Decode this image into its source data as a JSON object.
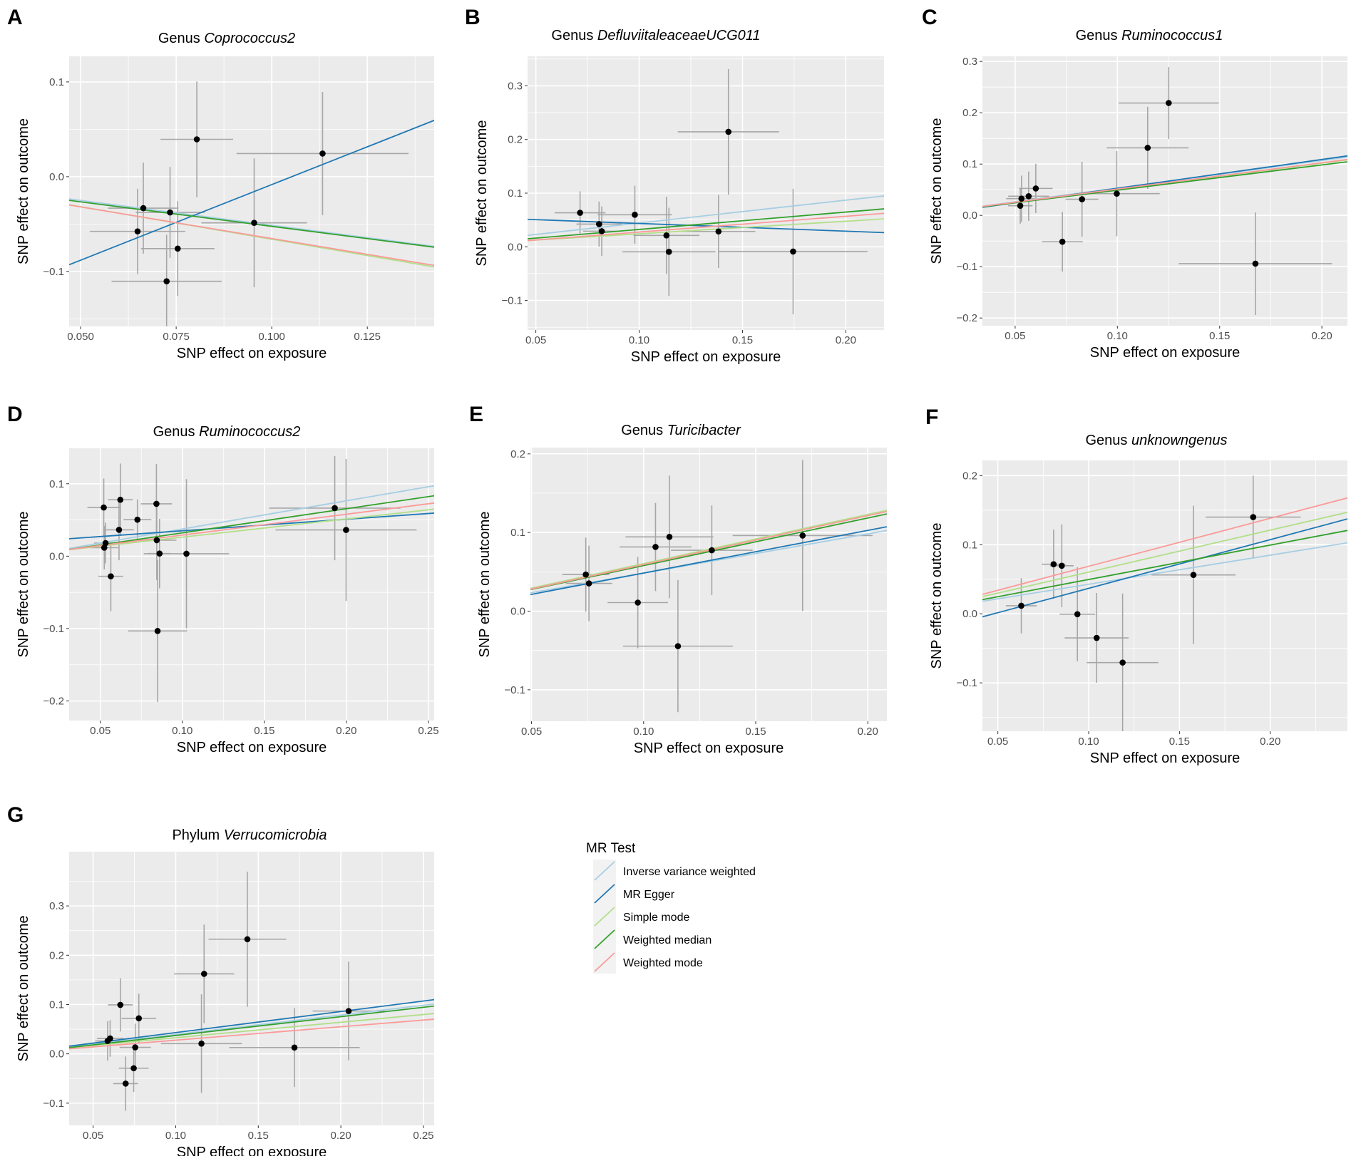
{
  "legend": {
    "title": "MR Test",
    "items": [
      {
        "label": "Inverse variance weighted",
        "color": "#a6cee3"
      },
      {
        "label": "MR Egger",
        "color": "#1f78b4"
      },
      {
        "label": "Simple mode",
        "color": "#b2df8a"
      },
      {
        "label": "Weighted median",
        "color": "#33a02c"
      },
      {
        "label": "Weighted mode",
        "color": "#fb9a99"
      }
    ]
  },
  "chart_data": [
    {
      "letter": "A",
      "type": "scatter",
      "title_prefix": "Genus ",
      "title_italic": "Coprococcus2",
      "xlabel": "SNP effect on exposure",
      "ylabel": "SNP effect on outcome",
      "xlim": [
        0.047,
        0.1425
      ],
      "ylim": [
        -0.158,
        0.127
      ],
      "xticks": [
        0.05,
        0.075,
        0.1,
        0.125
      ],
      "xtick_labels": [
        "0.050",
        "0.075",
        "0.100",
        "0.125"
      ],
      "yticks": [
        -0.1,
        0,
        0.1
      ],
      "ytick_labels": [
        "−0.1",
        "0.0",
        "0.1"
      ],
      "points": [
        {
          "x": 0.0804,
          "y": 0.0394,
          "xerr": 0.0095,
          "yerr": 0.061
        },
        {
          "x": 0.1133,
          "y": 0.0244,
          "xerr": 0.0225,
          "yerr": 0.065
        },
        {
          "x": 0.0664,
          "y": -0.0332,
          "xerr": 0.0092,
          "yerr": 0.048
        },
        {
          "x": 0.0734,
          "y": -0.0377,
          "xerr": 0.009,
          "yerr": 0.048
        },
        {
          "x": 0.0954,
          "y": -0.0487,
          "xerr": 0.0138,
          "yerr": 0.068
        },
        {
          "x": 0.0649,
          "y": -0.0577,
          "xerr": 0.0125,
          "yerr": 0.045
        },
        {
          "x": 0.0754,
          "y": -0.0759,
          "xerr": 0.0096,
          "yerr": 0.05
        },
        {
          "x": 0.0725,
          "y": -0.1104,
          "xerr": 0.0144,
          "yerr": 0.049
        }
      ],
      "lines": [
        {
          "method": "Inverse variance weighted",
          "y_start": -0.0235,
          "y_end": -0.0735
        },
        {
          "method": "MR Egger",
          "y_start": -0.0929,
          "y_end": 0.0594
        },
        {
          "method": "Simple mode",
          "y_start": -0.0296,
          "y_end": -0.0952
        },
        {
          "method": "Weighted median",
          "y_start": -0.025,
          "y_end": -0.0744
        },
        {
          "method": "Weighted mode",
          "y_start": -0.0299,
          "y_end": -0.0936
        }
      ]
    },
    {
      "letter": "B",
      "type": "scatter",
      "title_prefix": "Genus ",
      "title_italic": "DefluviitaleaceaeUCG011",
      "xlabel": "SNP effect on exposure",
      "ylabel": "SNP effect on outcome",
      "xlim": [
        0.046,
        0.2185
      ],
      "ylim": [
        -0.155,
        0.355
      ],
      "xticks": [
        0.05,
        0.1,
        0.15,
        0.2
      ],
      "xtick_labels": [
        "0.05",
        "0.10",
        "0.15",
        "0.20"
      ],
      "yticks": [
        -0.1,
        0,
        0.1,
        0.2,
        0.3
      ],
      "ytick_labels": [
        "−0.1",
        "0.0",
        "0.1",
        "0.2",
        "0.3"
      ],
      "points": [
        {
          "x": 0.0714,
          "y": 0.0634,
          "xerr": 0.0123,
          "yerr": 0.04
        },
        {
          "x": 0.0806,
          "y": 0.0423,
          "xerr": 0.011,
          "yerr": 0.042
        },
        {
          "x": 0.0819,
          "y": 0.0291,
          "xerr": 0.009,
          "yerr": 0.046
        },
        {
          "x": 0.0979,
          "y": 0.0597,
          "xerr": 0.018,
          "yerr": 0.054
        },
        {
          "x": 0.1132,
          "y": 0.0212,
          "xerr": 0.016,
          "yerr": 0.072
        },
        {
          "x": 0.1144,
          "y": -0.0093,
          "xerr": 0.0225,
          "yerr": 0.082
        },
        {
          "x": 0.1384,
          "y": 0.0286,
          "xerr": 0.0178,
          "yerr": 0.068
        },
        {
          "x": 0.1432,
          "y": 0.2143,
          "xerr": 0.0245,
          "yerr": 0.117
        },
        {
          "x": 0.1745,
          "y": -0.0088,
          "xerr": 0.036,
          "yerr": 0.117
        }
      ],
      "lines": [
        {
          "method": "Inverse variance weighted",
          "y_start": 0.0213,
          "y_end": 0.0948
        },
        {
          "method": "MR Egger",
          "y_start": 0.0512,
          "y_end": 0.0265
        },
        {
          "method": "Simple mode",
          "y_start": 0.0116,
          "y_end": 0.052
        },
        {
          "method": "Weighted median",
          "y_start": 0.0149,
          "y_end": 0.0707
        },
        {
          "method": "Weighted mode",
          "y_start": 0.0116,
          "y_end": 0.0623
        }
      ]
    },
    {
      "letter": "C",
      "type": "scatter",
      "title_prefix": "Genus ",
      "title_italic": "Ruminococcus1",
      "xlabel": "SNP effect on exposure",
      "ylabel": "SNP effect on outcome",
      "xlim": [
        0.034,
        0.2125
      ],
      "ylim": [
        -0.215,
        0.31
      ],
      "xticks": [
        0.05,
        0.1,
        0.15,
        0.2
      ],
      "xtick_labels": [
        "0.05",
        "0.10",
        "0.15",
        "0.20"
      ],
      "yticks": [
        -0.2,
        -0.1,
        0,
        0.1,
        0.2,
        0.3
      ],
      "ytick_labels": [
        "−0.2",
        "−0.1",
        "0.0",
        "0.1",
        "0.2",
        "0.3"
      ],
      "points": [
        {
          "x": 0.1251,
          "y": 0.219,
          "xerr": 0.0245,
          "yerr": 0.07
        },
        {
          "x": 0.1148,
          "y": 0.1316,
          "xerr": 0.02,
          "yerr": 0.08
        },
        {
          "x": 0.0601,
          "y": 0.0525,
          "xerr": 0.0082,
          "yerr": 0.048
        },
        {
          "x": 0.0997,
          "y": 0.0424,
          "xerr": 0.021,
          "yerr": 0.083
        },
        {
          "x": 0.0566,
          "y": 0.0373,
          "xerr": 0.01,
          "yerr": 0.048
        },
        {
          "x": 0.0531,
          "y": 0.0326,
          "xerr": 0.0075,
          "yerr": 0.045
        },
        {
          "x": 0.0827,
          "y": 0.0314,
          "xerr": 0.008,
          "yerr": 0.073
        },
        {
          "x": 0.0525,
          "y": 0.0188,
          "xerr": 0.006,
          "yerr": 0.035
        },
        {
          "x": 0.0731,
          "y": -0.0514,
          "xerr": 0.01,
          "yerr": 0.058
        },
        {
          "x": 0.1675,
          "y": -0.0941,
          "xerr": 0.0375,
          "yerr": 0.1
        }
      ],
      "lines": [
        {
          "method": "Inverse variance weighted",
          "y_start": 0.0178,
          "y_end": 0.1137
        },
        {
          "method": "MR Egger",
          "y_start": 0.0157,
          "y_end": 0.116
        },
        {
          "method": "Simple mode",
          "y_start": 0.0172,
          "y_end": 0.1081
        },
        {
          "method": "Weighted median",
          "y_start": 0.0166,
          "y_end": 0.1045
        },
        {
          "method": "Weighted mode",
          "y_start": 0.0175,
          "y_end": 0.109
        }
      ]
    },
    {
      "letter": "D",
      "type": "scatter",
      "title_prefix": "Genus ",
      "title_italic": "Ruminococcus2",
      "xlabel": "SNP effect on exposure",
      "ylabel": "SNP effect on outcome",
      "xlim": [
        0.031,
        0.2535
      ],
      "ylim": [
        -0.227,
        0.149
      ],
      "xticks": [
        0.05,
        0.1,
        0.15,
        0.2,
        0.25
      ],
      "xtick_labels": [
        "0.05",
        "0.10",
        "0.15",
        "0.20",
        "0.25"
      ],
      "yticks": [
        -0.2,
        -0.1,
        0,
        0.1
      ],
      "ytick_labels": [
        "−0.2",
        "−0.1",
        "0.0",
        "0.1"
      ],
      "points": [
        {
          "x": 0.0622,
          "y": 0.0779,
          "xerr": 0.0075,
          "yerr": 0.05
        },
        {
          "x": 0.0842,
          "y": 0.0723,
          "xerr": 0.0095,
          "yerr": 0.055
        },
        {
          "x": 0.0521,
          "y": 0.0672,
          "xerr": 0.01,
          "yerr": 0.04
        },
        {
          "x": 0.1929,
          "y": 0.0664,
          "xerr": 0.04,
          "yerr": 0.072
        },
        {
          "x": 0.0726,
          "y": 0.0504,
          "xerr": 0.0085,
          "yerr": 0.028
        },
        {
          "x": 0.0614,
          "y": 0.0364,
          "xerr": 0.009,
          "yerr": 0.042
        },
        {
          "x": 0.1998,
          "y": 0.0362,
          "xerr": 0.043,
          "yerr": 0.098
        },
        {
          "x": 0.0844,
          "y": 0.0221,
          "xerr": 0.012,
          "yerr": 0.055
        },
        {
          "x": 0.0532,
          "y": 0.0181,
          "xerr": 0.007,
          "yerr": 0.028
        },
        {
          "x": 0.0524,
          "y": 0.0117,
          "xerr": 0.0085,
          "yerr": 0.03
        },
        {
          "x": 0.0861,
          "y": 0.0036,
          "xerr": 0.007,
          "yerr": 0.048
        },
        {
          "x": 0.1025,
          "y": 0.0034,
          "xerr": 0.026,
          "yerr": 0.103
        },
        {
          "x": 0.0564,
          "y": -0.0278,
          "xerr": 0.0075,
          "yerr": 0.048
        },
        {
          "x": 0.0849,
          "y": -0.1033,
          "xerr": 0.018,
          "yerr": 0.098
        }
      ],
      "lines": [
        {
          "method": "Inverse variance weighted",
          "y_start": 0.0107,
          "y_end": 0.0973
        },
        {
          "method": "MR Egger",
          "y_start": 0.0241,
          "y_end": 0.0595
        },
        {
          "method": "Simple mode",
          "y_start": 0.0089,
          "y_end": 0.0649
        },
        {
          "method": "Weighted median",
          "y_start": 0.0092,
          "y_end": 0.0834
        },
        {
          "method": "Weighted mode",
          "y_start": 0.0092,
          "y_end": 0.0734
        }
      ]
    },
    {
      "letter": "E",
      "type": "scatter",
      "title_prefix": "Genus ",
      "title_italic": "Turicibacter",
      "xlabel": "SNP effect on exposure",
      "ylabel": "SNP effect on outcome",
      "xlim": [
        0.0495,
        0.2085
      ],
      "ylim": [
        -0.14,
        0.208
      ],
      "xticks": [
        0.05,
        0.1,
        0.15,
        0.2
      ],
      "xtick_labels": [
        "0.05",
        "0.10",
        "0.15",
        "0.20"
      ],
      "yticks": [
        -0.1,
        0,
        0.1,
        0.2
      ],
      "ytick_labels": [
        "−0.1",
        "0.0",
        "0.1",
        "0.2"
      ],
      "points": [
        {
          "x": 0.1709,
          "y": 0.0961,
          "xerr": 0.0312,
          "yerr": 0.096
        },
        {
          "x": 0.1115,
          "y": 0.0944,
          "xerr": 0.0196,
          "yerr": 0.078
        },
        {
          "x": 0.1053,
          "y": 0.0816,
          "xerr": 0.016,
          "yerr": 0.056
        },
        {
          "x": 0.1304,
          "y": 0.0774,
          "xerr": 0.0182,
          "yerr": 0.057
        },
        {
          "x": 0.0742,
          "y": 0.0465,
          "xerr": 0.0105,
          "yerr": 0.047
        },
        {
          "x": 0.0756,
          "y": 0.0353,
          "xerr": 0.0103,
          "yerr": 0.048
        },
        {
          "x": 0.0974,
          "y": 0.0109,
          "xerr": 0.0135,
          "yerr": 0.058
        },
        {
          "x": 0.1153,
          "y": -0.0445,
          "xerr": 0.0245,
          "yerr": 0.084
        }
      ],
      "lines": [
        {
          "method": "Inverse variance weighted",
          "y_start": 0.0232,
          "y_end": 0.1025
        },
        {
          "method": "MR Egger",
          "y_start": 0.0211,
          "y_end": 0.1073
        },
        {
          "method": "Simple mode",
          "y_start": 0.029,
          "y_end": 0.1283
        },
        {
          "method": "Weighted median",
          "y_start": 0.0274,
          "y_end": 0.1236
        },
        {
          "method": "Weighted mode",
          "y_start": 0.0279,
          "y_end": 0.1267
        }
      ]
    },
    {
      "letter": "F",
      "type": "scatter",
      "title_prefix": "Genus ",
      "title_italic": "unknowngenus",
      "xlabel": "SNP effect on exposure",
      "ylabel": "SNP effect on outcome",
      "xlim": [
        0.0415,
        0.2425
      ],
      "ylim": [
        -0.17,
        0.222
      ],
      "xticks": [
        0.05,
        0.1,
        0.15,
        0.2
      ],
      "xtick_labels": [
        "0.05",
        "0.10",
        "0.15",
        "0.20"
      ],
      "yticks": [
        -0.1,
        0,
        0.1,
        0.2
      ],
      "ytick_labels": [
        "−0.1",
        "0.0",
        "0.1",
        "0.2"
      ],
      "points": [
        {
          "x": 0.1906,
          "y": 0.1399,
          "xerr": 0.0262,
          "yerr": 0.06
        },
        {
          "x": 0.0807,
          "y": 0.0717,
          "xerr": 0.0065,
          "yerr": 0.05
        },
        {
          "x": 0.0852,
          "y": 0.0695,
          "xerr": 0.0065,
          "yerr": 0.06
        },
        {
          "x": 0.1577,
          "y": 0.0562,
          "xerr": 0.0232,
          "yerr": 0.1
        },
        {
          "x": 0.0629,
          "y": 0.0116,
          "xerr": 0.0085,
          "yerr": 0.04
        },
        {
          "x": 0.0938,
          "y": -0.0006,
          "xerr": 0.0098,
          "yerr": 0.068
        },
        {
          "x": 0.1044,
          "y": -0.0349,
          "xerr": 0.0176,
          "yerr": 0.065
        },
        {
          "x": 0.1187,
          "y": -0.0706,
          "xerr": 0.0197,
          "yerr": 0.1
        }
      ],
      "lines": [
        {
          "method": "Inverse variance weighted",
          "y_start": 0.0181,
          "y_end": 0.1027
        },
        {
          "method": "MR Egger",
          "y_start": -0.0044,
          "y_end": 0.1373
        },
        {
          "method": "Simple mode",
          "y_start": 0.0248,
          "y_end": 0.1469
        },
        {
          "method": "Weighted median",
          "y_start": 0.0205,
          "y_end": 0.1206
        },
        {
          "method": "Weighted mode",
          "y_start": 0.0281,
          "y_end": 0.1677
        }
      ]
    },
    {
      "letter": "G",
      "type": "scatter",
      "title_prefix": "Phylum ",
      "title_italic": "Verrucomicrobia",
      "xlabel": "SNP effect on exposure",
      "ylabel": "SNP effect on outcome",
      "xlim": [
        0.0355,
        0.2565
      ],
      "ylim": [
        -0.145,
        0.41
      ],
      "xticks": [
        0.05,
        0.1,
        0.15,
        0.2,
        0.25
      ],
      "xtick_labels": [
        "0.05",
        "0.10",
        "0.15",
        "0.20",
        "0.25"
      ],
      "yticks": [
        -0.1,
        0,
        0.1,
        0.2,
        0.3
      ],
      "ytick_labels": [
        "−0.1",
        "0.0",
        "0.1",
        "0.2",
        "0.3"
      ],
      "points": [
        {
          "x": 0.1434,
          "y": 0.2324,
          "xerr": 0.0235,
          "yerr": 0.137
        },
        {
          "x": 0.1172,
          "y": 0.1622,
          "xerr": 0.0182,
          "yerr": 0.1
        },
        {
          "x": 0.0665,
          "y": 0.0993,
          "xerr": 0.0075,
          "yerr": 0.054
        },
        {
          "x": 0.2047,
          "y": 0.0868,
          "xerr": 0.0218,
          "yerr": 0.1
        },
        {
          "x": 0.0777,
          "y": 0.0721,
          "xerr": 0.0105,
          "yerr": 0.05
        },
        {
          "x": 0.0603,
          "y": 0.0312,
          "xerr": 0.008,
          "yerr": 0.037
        },
        {
          "x": 0.0588,
          "y": 0.0262,
          "xerr": 0.0075,
          "yerr": 0.04
        },
        {
          "x": 0.1156,
          "y": 0.0208,
          "xerr": 0.0245,
          "yerr": 0.1
        },
        {
          "x": 0.0755,
          "y": 0.0132,
          "xerr": 0.0095,
          "yerr": 0.048
        },
        {
          "x": 0.1719,
          "y": 0.0128,
          "xerr": 0.0395,
          "yerr": 0.08
        },
        {
          "x": 0.0746,
          "y": -0.0292,
          "xerr": 0.009,
          "yerr": 0.048
        },
        {
          "x": 0.0697,
          "y": -0.0603,
          "xerr": 0.0075,
          "yerr": 0.055
        }
      ],
      "lines": [
        {
          "method": "Inverse variance weighted",
          "y_start": 0.0136,
          "y_end": 0.1011
        },
        {
          "method": "MR Egger",
          "y_start": 0.0156,
          "y_end": 0.1099
        },
        {
          "method": "Simple mode",
          "y_start": 0.0125,
          "y_end": 0.0818
        },
        {
          "method": "Weighted median",
          "y_start": 0.0127,
          "y_end": 0.0969
        },
        {
          "method": "Weighted mode",
          "y_start": 0.0102,
          "y_end": 0.0703
        }
      ]
    }
  ]
}
